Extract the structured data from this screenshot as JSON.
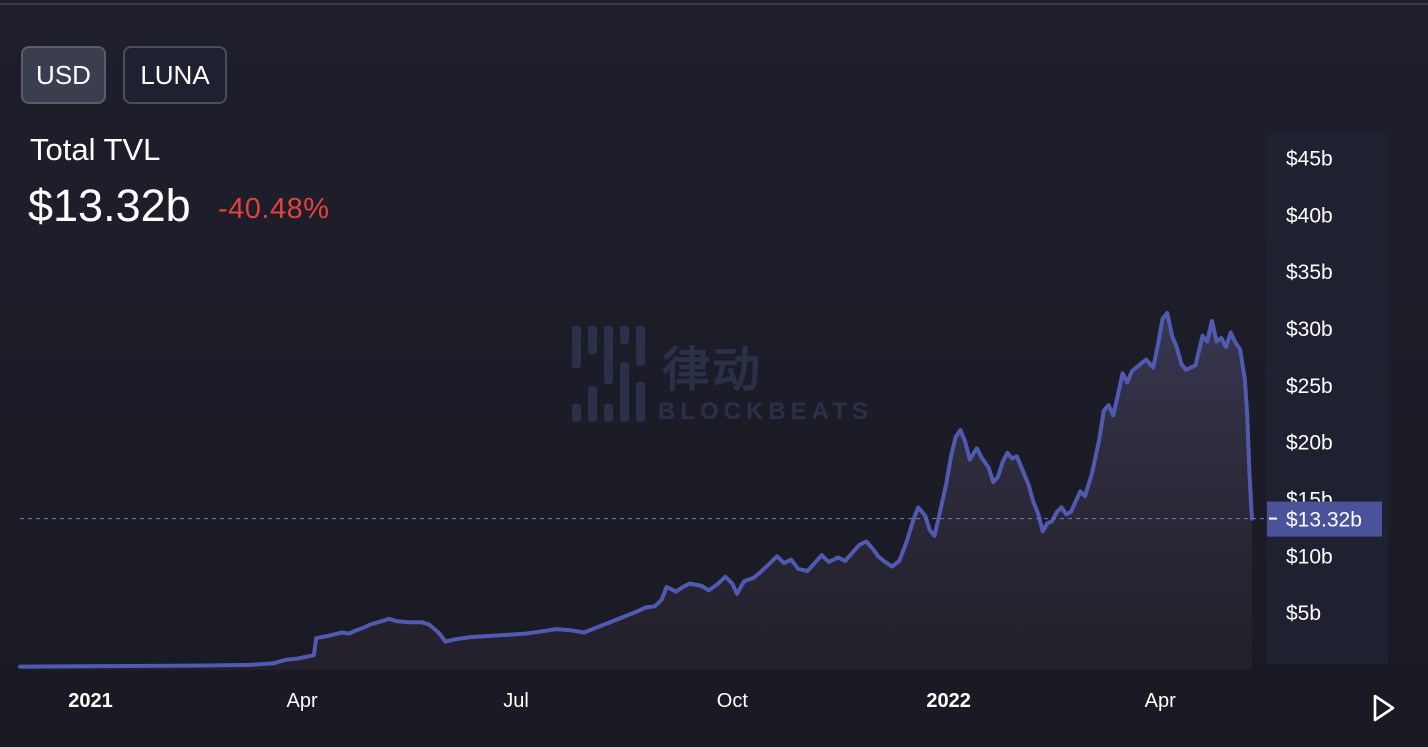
{
  "toggles": {
    "usd": "USD",
    "luna": "LUNA"
  },
  "header": {
    "label": "Total TVL",
    "value": "$13.32b",
    "change": "-40.48%"
  },
  "watermark": {
    "cn": "律动",
    "en": "BLOCKBEATS"
  },
  "icons": {
    "play": "play-icon"
  },
  "colors": {
    "line": "#4f5ab0",
    "change": "#e0433c",
    "price_tag": "#4a5399",
    "background": "#1c1c28"
  },
  "chart_data": {
    "type": "area",
    "title": "Total TVL",
    "ylabel": "",
    "xlabel": "",
    "ylim": [
      0,
      47.5
    ],
    "xlim": [
      "2020-12-02",
      "2022-05-16"
    ],
    "y_ticks": [
      {
        "value": 5,
        "label": "$5b"
      },
      {
        "value": 10,
        "label": "$10b"
      },
      {
        "value": 15,
        "label": "$15b"
      },
      {
        "value": 20,
        "label": "$20b"
      },
      {
        "value": 25,
        "label": "$25b"
      },
      {
        "value": 30,
        "label": "$30b"
      },
      {
        "value": 35,
        "label": "$35b"
      },
      {
        "value": 40,
        "label": "$40b"
      },
      {
        "value": 45,
        "label": "$45b"
      }
    ],
    "x_ticks": [
      {
        "date": "2021-01-01",
        "label": "2021",
        "bold": true
      },
      {
        "date": "2021-04-01",
        "label": "Apr",
        "bold": false
      },
      {
        "date": "2021-07-01",
        "label": "Jul",
        "bold": false
      },
      {
        "date": "2021-10-01",
        "label": "Oct",
        "bold": false
      },
      {
        "date": "2022-01-01",
        "label": "2022",
        "bold": true
      },
      {
        "date": "2022-04-01",
        "label": "Apr",
        "bold": false
      }
    ],
    "current_value": 13.32,
    "current_label": "$13.32b",
    "grid": false,
    "series": [
      {
        "points": [
          [
            "2020-12-02",
            0.3
          ],
          [
            "2021-01-15",
            0.35
          ],
          [
            "2021-02-20",
            0.4
          ],
          [
            "2021-03-10",
            0.45
          ],
          [
            "2021-03-20",
            0.6
          ],
          [
            "2021-03-25",
            0.9
          ],
          [
            "2021-03-30",
            1.0
          ],
          [
            "2021-04-06",
            1.3
          ],
          [
            "2021-04-07",
            2.8
          ],
          [
            "2021-04-12",
            3.0
          ],
          [
            "2021-04-18",
            3.3
          ],
          [
            "2021-04-21",
            3.2
          ],
          [
            "2021-04-23",
            3.4
          ],
          [
            "2021-04-27",
            3.7
          ],
          [
            "2021-04-30",
            4.0
          ],
          [
            "2021-05-05",
            4.3
          ],
          [
            "2021-05-08",
            4.5
          ],
          [
            "2021-05-11",
            4.3
          ],
          [
            "2021-05-16",
            4.2
          ],
          [
            "2021-05-22",
            4.2
          ],
          [
            "2021-05-25",
            4.0
          ],
          [
            "2021-05-29",
            3.3
          ],
          [
            "2021-06-01",
            2.5
          ],
          [
            "2021-06-05",
            2.7
          ],
          [
            "2021-06-12",
            2.9
          ],
          [
            "2021-06-20",
            3.0
          ],
          [
            "2021-06-28",
            3.1
          ],
          [
            "2021-07-05",
            3.2
          ],
          [
            "2021-07-12",
            3.4
          ],
          [
            "2021-07-18",
            3.6
          ],
          [
            "2021-07-24",
            3.5
          ],
          [
            "2021-07-30",
            3.3
          ],
          [
            "2021-08-05",
            3.8
          ],
          [
            "2021-08-10",
            4.2
          ],
          [
            "2021-08-16",
            4.7
          ],
          [
            "2021-08-22",
            5.2
          ],
          [
            "2021-08-25",
            5.5
          ],
          [
            "2021-08-29",
            5.6
          ],
          [
            "2021-09-01",
            6.2
          ],
          [
            "2021-09-03",
            7.3
          ],
          [
            "2021-09-07",
            6.9
          ],
          [
            "2021-09-10",
            7.3
          ],
          [
            "2021-09-13",
            7.6
          ],
          [
            "2021-09-18",
            7.4
          ],
          [
            "2021-09-21",
            7.0
          ],
          [
            "2021-09-25",
            7.6
          ],
          [
            "2021-09-28",
            8.2
          ],
          [
            "2021-10-01",
            7.6
          ],
          [
            "2021-10-03",
            6.7
          ],
          [
            "2021-10-06",
            7.8
          ],
          [
            "2021-10-10",
            8.1
          ],
          [
            "2021-10-13",
            8.6
          ],
          [
            "2021-10-16",
            9.2
          ],
          [
            "2021-10-20",
            10.0
          ],
          [
            "2021-10-23",
            9.4
          ],
          [
            "2021-10-26",
            9.7
          ],
          [
            "2021-10-29",
            8.9
          ],
          [
            "2021-11-02",
            8.7
          ],
          [
            "2021-11-05",
            9.4
          ],
          [
            "2021-11-08",
            10.1
          ],
          [
            "2021-11-11",
            9.5
          ],
          [
            "2021-11-15",
            9.9
          ],
          [
            "2021-11-18",
            9.6
          ],
          [
            "2021-11-21",
            10.3
          ],
          [
            "2021-11-24",
            11.0
          ],
          [
            "2021-11-27",
            11.3
          ],
          [
            "2021-11-30",
            10.6
          ],
          [
            "2021-12-02",
            10.0
          ],
          [
            "2021-12-05",
            9.5
          ],
          [
            "2021-12-08",
            9.1
          ],
          [
            "2021-12-11",
            9.6
          ],
          [
            "2021-12-14",
            11.2
          ],
          [
            "2021-12-17",
            13.2
          ],
          [
            "2021-12-19",
            14.3
          ],
          [
            "2021-12-22",
            13.6
          ],
          [
            "2021-12-24",
            12.3
          ],
          [
            "2021-12-26",
            11.8
          ],
          [
            "2021-12-28",
            13.6
          ],
          [
            "2021-12-31",
            16.4
          ],
          [
            "2022-01-02",
            18.8
          ],
          [
            "2022-01-04",
            20.5
          ],
          [
            "2022-01-06",
            21.1
          ],
          [
            "2022-01-08",
            20.1
          ],
          [
            "2022-01-10",
            18.5
          ],
          [
            "2022-01-13",
            19.5
          ],
          [
            "2022-01-15",
            18.7
          ],
          [
            "2022-01-18",
            17.8
          ],
          [
            "2022-01-20",
            16.5
          ],
          [
            "2022-01-22",
            17.0
          ],
          [
            "2022-01-24",
            18.3
          ],
          [
            "2022-01-26",
            19.1
          ],
          [
            "2022-01-28",
            18.6
          ],
          [
            "2022-01-30",
            18.8
          ],
          [
            "2022-02-02",
            17.3
          ],
          [
            "2022-02-04",
            16.3
          ],
          [
            "2022-02-06",
            14.8
          ],
          [
            "2022-02-08",
            13.8
          ],
          [
            "2022-02-10",
            12.2
          ],
          [
            "2022-02-12",
            12.9
          ],
          [
            "2022-02-14",
            13.1
          ],
          [
            "2022-02-16",
            13.9
          ],
          [
            "2022-02-18",
            14.3
          ],
          [
            "2022-02-20",
            13.7
          ],
          [
            "2022-02-22",
            13.9
          ],
          [
            "2022-02-24",
            14.8
          ],
          [
            "2022-02-26",
            15.7
          ],
          [
            "2022-02-28",
            15.3
          ],
          [
            "2022-03-03",
            17.3
          ],
          [
            "2022-03-06",
            20.2
          ],
          [
            "2022-03-08",
            22.8
          ],
          [
            "2022-03-10",
            23.3
          ],
          [
            "2022-03-12",
            22.4
          ],
          [
            "2022-03-14",
            24.2
          ],
          [
            "2022-03-16",
            26.1
          ],
          [
            "2022-03-18",
            25.3
          ],
          [
            "2022-03-20",
            26.3
          ],
          [
            "2022-03-23",
            26.8
          ],
          [
            "2022-03-26",
            27.3
          ],
          [
            "2022-03-29",
            26.6
          ],
          [
            "2022-03-31",
            28.6
          ],
          [
            "2022-04-02",
            30.9
          ],
          [
            "2022-04-04",
            31.4
          ],
          [
            "2022-04-06",
            29.4
          ],
          [
            "2022-04-08",
            28.4
          ],
          [
            "2022-04-10",
            26.9
          ],
          [
            "2022-04-12",
            26.4
          ],
          [
            "2022-04-14",
            26.6
          ],
          [
            "2022-04-16",
            26.8
          ],
          [
            "2022-04-19",
            29.4
          ],
          [
            "2022-04-21",
            28.9
          ],
          [
            "2022-04-23",
            30.7
          ],
          [
            "2022-04-25",
            28.9
          ],
          [
            "2022-04-27",
            29.2
          ],
          [
            "2022-04-29",
            28.4
          ],
          [
            "2022-05-01",
            29.7
          ],
          [
            "2022-05-03",
            28.8
          ],
          [
            "2022-05-05",
            28.2
          ],
          [
            "2022-05-07",
            25.6
          ],
          [
            "2022-05-08",
            22.4
          ],
          [
            "2022-05-09",
            17.2
          ],
          [
            "2022-05-10",
            13.32
          ]
        ]
      }
    ]
  }
}
